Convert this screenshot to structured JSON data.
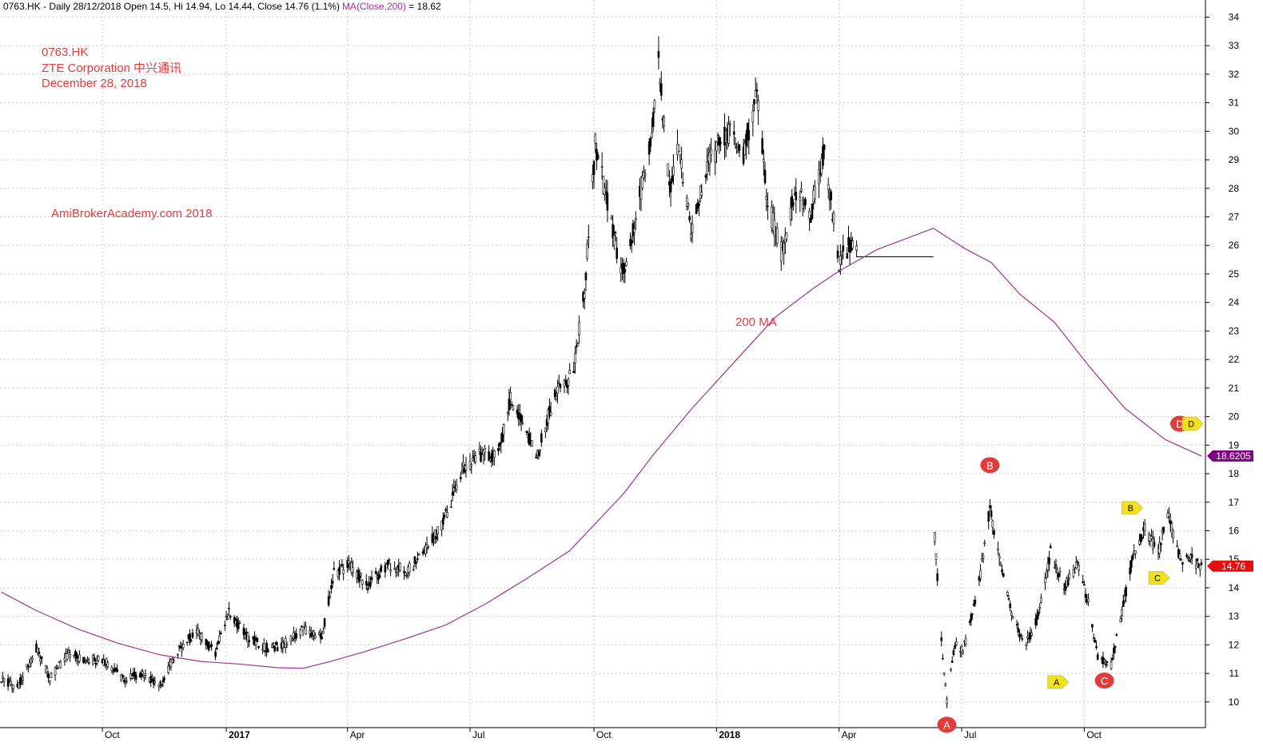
{
  "chart_data": {
    "type": "candlestick",
    "header": {
      "prefix": "0763.HK - Daily 28/12/2018 Open 14.5, Hi 14.94, Lo 14.44, Close 14.76 (1.1%)",
      "ma_label": "MA(Close,200)",
      "ma_value": " = 18.62"
    },
    "annotations": {
      "ticker": "0763.HK",
      "company": "ZTE Corporation  中兴通讯",
      "date": "December 28, 2018",
      "watermark": "AmiBrokerAcademy.com  2018",
      "ma_note": "200 MA"
    },
    "ylim": [
      9.1,
      34.6
    ],
    "y_ticks": [
      10,
      11,
      12,
      13,
      14,
      15,
      16,
      17,
      18,
      19,
      20,
      21,
      22,
      23,
      24,
      25,
      26,
      27,
      28,
      29,
      30,
      31,
      32,
      33,
      34
    ],
    "x_ticks": [
      {
        "label": "Oct",
        "date": "2016-10-03",
        "bold": false
      },
      {
        "label": "2017",
        "date": "2017-01-03",
        "bold": true
      },
      {
        "label": "Apr",
        "date": "2017-04-03",
        "bold": false
      },
      {
        "label": "Jul",
        "date": "2017-07-03",
        "bold": false
      },
      {
        "label": "Oct",
        "date": "2017-10-03",
        "bold": false
      },
      {
        "label": "2018",
        "date": "2018-01-02",
        "bold": true
      },
      {
        "label": "Apr",
        "date": "2018-04-03",
        "bold": false
      },
      {
        "label": "Jul",
        "date": "2018-07-03",
        "bold": false
      },
      {
        "label": "Oct",
        "date": "2018-10-02",
        "bold": false
      }
    ],
    "x_range": [
      "2016-07-19",
      "2018-12-31"
    ],
    "price_path": [
      [
        "2016-07-20",
        10.8
      ],
      [
        "2016-08-01",
        10.5
      ],
      [
        "2016-08-15",
        11.9
      ],
      [
        "2016-08-25",
        10.8
      ],
      [
        "2016-09-08",
        11.7
      ],
      [
        "2016-09-22",
        11.5
      ],
      [
        "2016-10-06",
        11.4
      ],
      [
        "2016-10-18",
        10.8
      ],
      [
        "2016-11-02",
        11.0
      ],
      [
        "2016-11-15",
        10.6
      ],
      [
        "2016-11-28",
        11.8
      ],
      [
        "2016-12-12",
        12.5
      ],
      [
        "2016-12-26",
        11.7
      ],
      [
        "2017-01-05",
        13.2
      ],
      [
        "2017-01-18",
        12.3
      ],
      [
        "2017-02-01",
        11.9
      ],
      [
        "2017-02-15",
        12.0
      ],
      [
        "2017-03-01",
        12.6
      ],
      [
        "2017-03-15",
        12.3
      ],
      [
        "2017-03-24",
        14.5
      ],
      [
        "2017-04-05",
        14.8
      ],
      [
        "2017-04-18",
        14.1
      ],
      [
        "2017-05-03",
        14.8
      ],
      [
        "2017-05-17",
        14.6
      ],
      [
        "2017-05-31",
        15.3
      ],
      [
        "2017-06-14",
        16.4
      ],
      [
        "2017-06-28",
        18.2
      ],
      [
        "2017-07-10",
        18.6
      ],
      [
        "2017-07-24",
        18.7
      ],
      [
        "2017-08-02",
        20.7
      ],
      [
        "2017-08-14",
        19.5
      ],
      [
        "2017-08-22",
        18.7
      ],
      [
        "2017-09-04",
        20.8
      ],
      [
        "2017-09-18",
        21.6
      ],
      [
        "2017-09-26",
        24.5
      ],
      [
        "2017-10-04",
        29.5
      ],
      [
        "2017-10-13",
        27.5
      ],
      [
        "2017-10-24",
        25.0
      ],
      [
        "2017-11-03",
        27.0
      ],
      [
        "2017-11-15",
        30.0
      ],
      [
        "2017-11-20",
        32.5
      ],
      [
        "2017-11-28",
        28.0
      ],
      [
        "2017-12-05",
        29.5
      ],
      [
        "2017-12-14",
        26.5
      ],
      [
        "2017-12-28",
        29.0
      ],
      [
        "2018-01-10",
        30.0
      ],
      [
        "2018-01-22",
        29.2
      ],
      [
        "2018-02-01",
        31.4
      ],
      [
        "2018-02-09",
        27.5
      ],
      [
        "2018-02-20",
        25.6
      ],
      [
        "2018-03-01",
        28.0
      ],
      [
        "2018-03-13",
        27.1
      ],
      [
        "2018-03-23",
        29.3
      ],
      [
        "2018-04-03",
        25.4
      ],
      [
        "2018-04-10",
        26.0
      ],
      [
        "2018-04-16",
        25.9
      ]
    ],
    "halt": {
      "from": "2018-04-16",
      "to": "2018-06-12",
      "price": 25.6
    },
    "price_path2": [
      [
        "2018-06-13",
        15.8
      ],
      [
        "2018-06-19",
        11.5
      ],
      [
        "2018-06-22",
        10.0
      ],
      [
        "2018-06-28",
        12.0
      ],
      [
        "2018-07-04",
        11.8
      ],
      [
        "2018-07-10",
        12.9
      ],
      [
        "2018-07-17",
        14.5
      ],
      [
        "2018-07-24",
        16.8
      ],
      [
        "2018-08-01",
        14.8
      ],
      [
        "2018-08-10",
        12.9
      ],
      [
        "2018-08-20",
        12.0
      ],
      [
        "2018-08-30",
        13.2
      ],
      [
        "2018-09-07",
        15.3
      ],
      [
        "2018-09-17",
        14.0
      ],
      [
        "2018-09-27",
        14.8
      ],
      [
        "2018-10-05",
        13.5
      ],
      [
        "2018-10-12",
        11.5
      ],
      [
        "2018-10-22",
        11.3
      ],
      [
        "2018-10-30",
        13.2
      ],
      [
        "2018-11-07",
        15.0
      ],
      [
        "2018-11-16",
        16.1
      ],
      [
        "2018-11-26",
        15.2
      ],
      [
        "2018-12-03",
        16.6
      ],
      [
        "2018-12-12",
        15.0
      ],
      [
        "2018-12-20",
        15.0
      ],
      [
        "2018-12-28",
        14.76
      ]
    ],
    "ma200": [
      [
        "2016-07-20",
        13.85
      ],
      [
        "2016-08-15",
        13.2
      ],
      [
        "2016-09-15",
        12.55
      ],
      [
        "2016-10-15",
        12.05
      ],
      [
        "2016-11-15",
        11.65
      ],
      [
        "2016-12-15",
        11.42
      ],
      [
        "2017-01-15",
        11.32
      ],
      [
        "2017-02-10",
        11.2
      ],
      [
        "2017-03-01",
        11.18
      ],
      [
        "2017-03-20",
        11.4
      ],
      [
        "2017-04-15",
        11.75
      ],
      [
        "2017-05-15",
        12.2
      ],
      [
        "2017-06-15",
        12.7
      ],
      [
        "2017-07-15",
        13.45
      ],
      [
        "2017-08-15",
        14.35
      ],
      [
        "2017-09-15",
        15.3
      ],
      [
        "2017-10-05",
        16.3
      ],
      [
        "2017-10-25",
        17.3
      ],
      [
        "2017-11-15",
        18.6
      ],
      [
        "2017-12-15",
        20.3
      ],
      [
        "2018-01-15",
        21.9
      ],
      [
        "2018-02-15",
        23.5
      ],
      [
        "2018-03-15",
        24.5
      ],
      [
        "2018-04-03",
        25.1
      ],
      [
        "2018-05-01",
        25.85
      ],
      [
        "2018-06-12",
        26.6
      ],
      [
        "2018-07-05",
        25.9
      ],
      [
        "2018-07-25",
        25.4
      ],
      [
        "2018-08-15",
        24.3
      ],
      [
        "2018-09-10",
        23.3
      ],
      [
        "2018-10-05",
        21.8
      ],
      [
        "2018-11-01",
        20.3
      ],
      [
        "2018-12-01",
        19.2
      ],
      [
        "2018-12-28",
        18.62
      ]
    ],
    "last_price_tag": "14.76",
    "ma_price_tag": "18.6205",
    "wave_markers": [
      {
        "label": "A",
        "date": "2018-06-22",
        "price": 9.2,
        "style": "red"
      },
      {
        "label": "B",
        "date": "2018-07-24",
        "price": 18.3,
        "style": "red"
      },
      {
        "label": "C",
        "date": "2018-10-17",
        "price": 10.75,
        "style": "red"
      },
      {
        "label": "D",
        "date": "2018-12-12",
        "price": 19.75,
        "style": "red"
      },
      {
        "label": "A",
        "date": "2018-09-12",
        "price": 10.7,
        "style": "yellow"
      },
      {
        "label": "B",
        "date": "2018-11-06",
        "price": 16.8,
        "style": "yellow"
      },
      {
        "label": "C",
        "date": "2018-11-26",
        "price": 14.35,
        "style": "yellow"
      },
      {
        "label": "D",
        "date": "2018-12-21",
        "price": 19.75,
        "style": "yellow"
      }
    ],
    "colors": {
      "ma": "#a030a0",
      "bars": "#000000",
      "red_marker": "#e03c3c",
      "yellow_marker": "#f0e020",
      "last_price_tag": "#e01010",
      "ma_tag": "#800080"
    }
  }
}
